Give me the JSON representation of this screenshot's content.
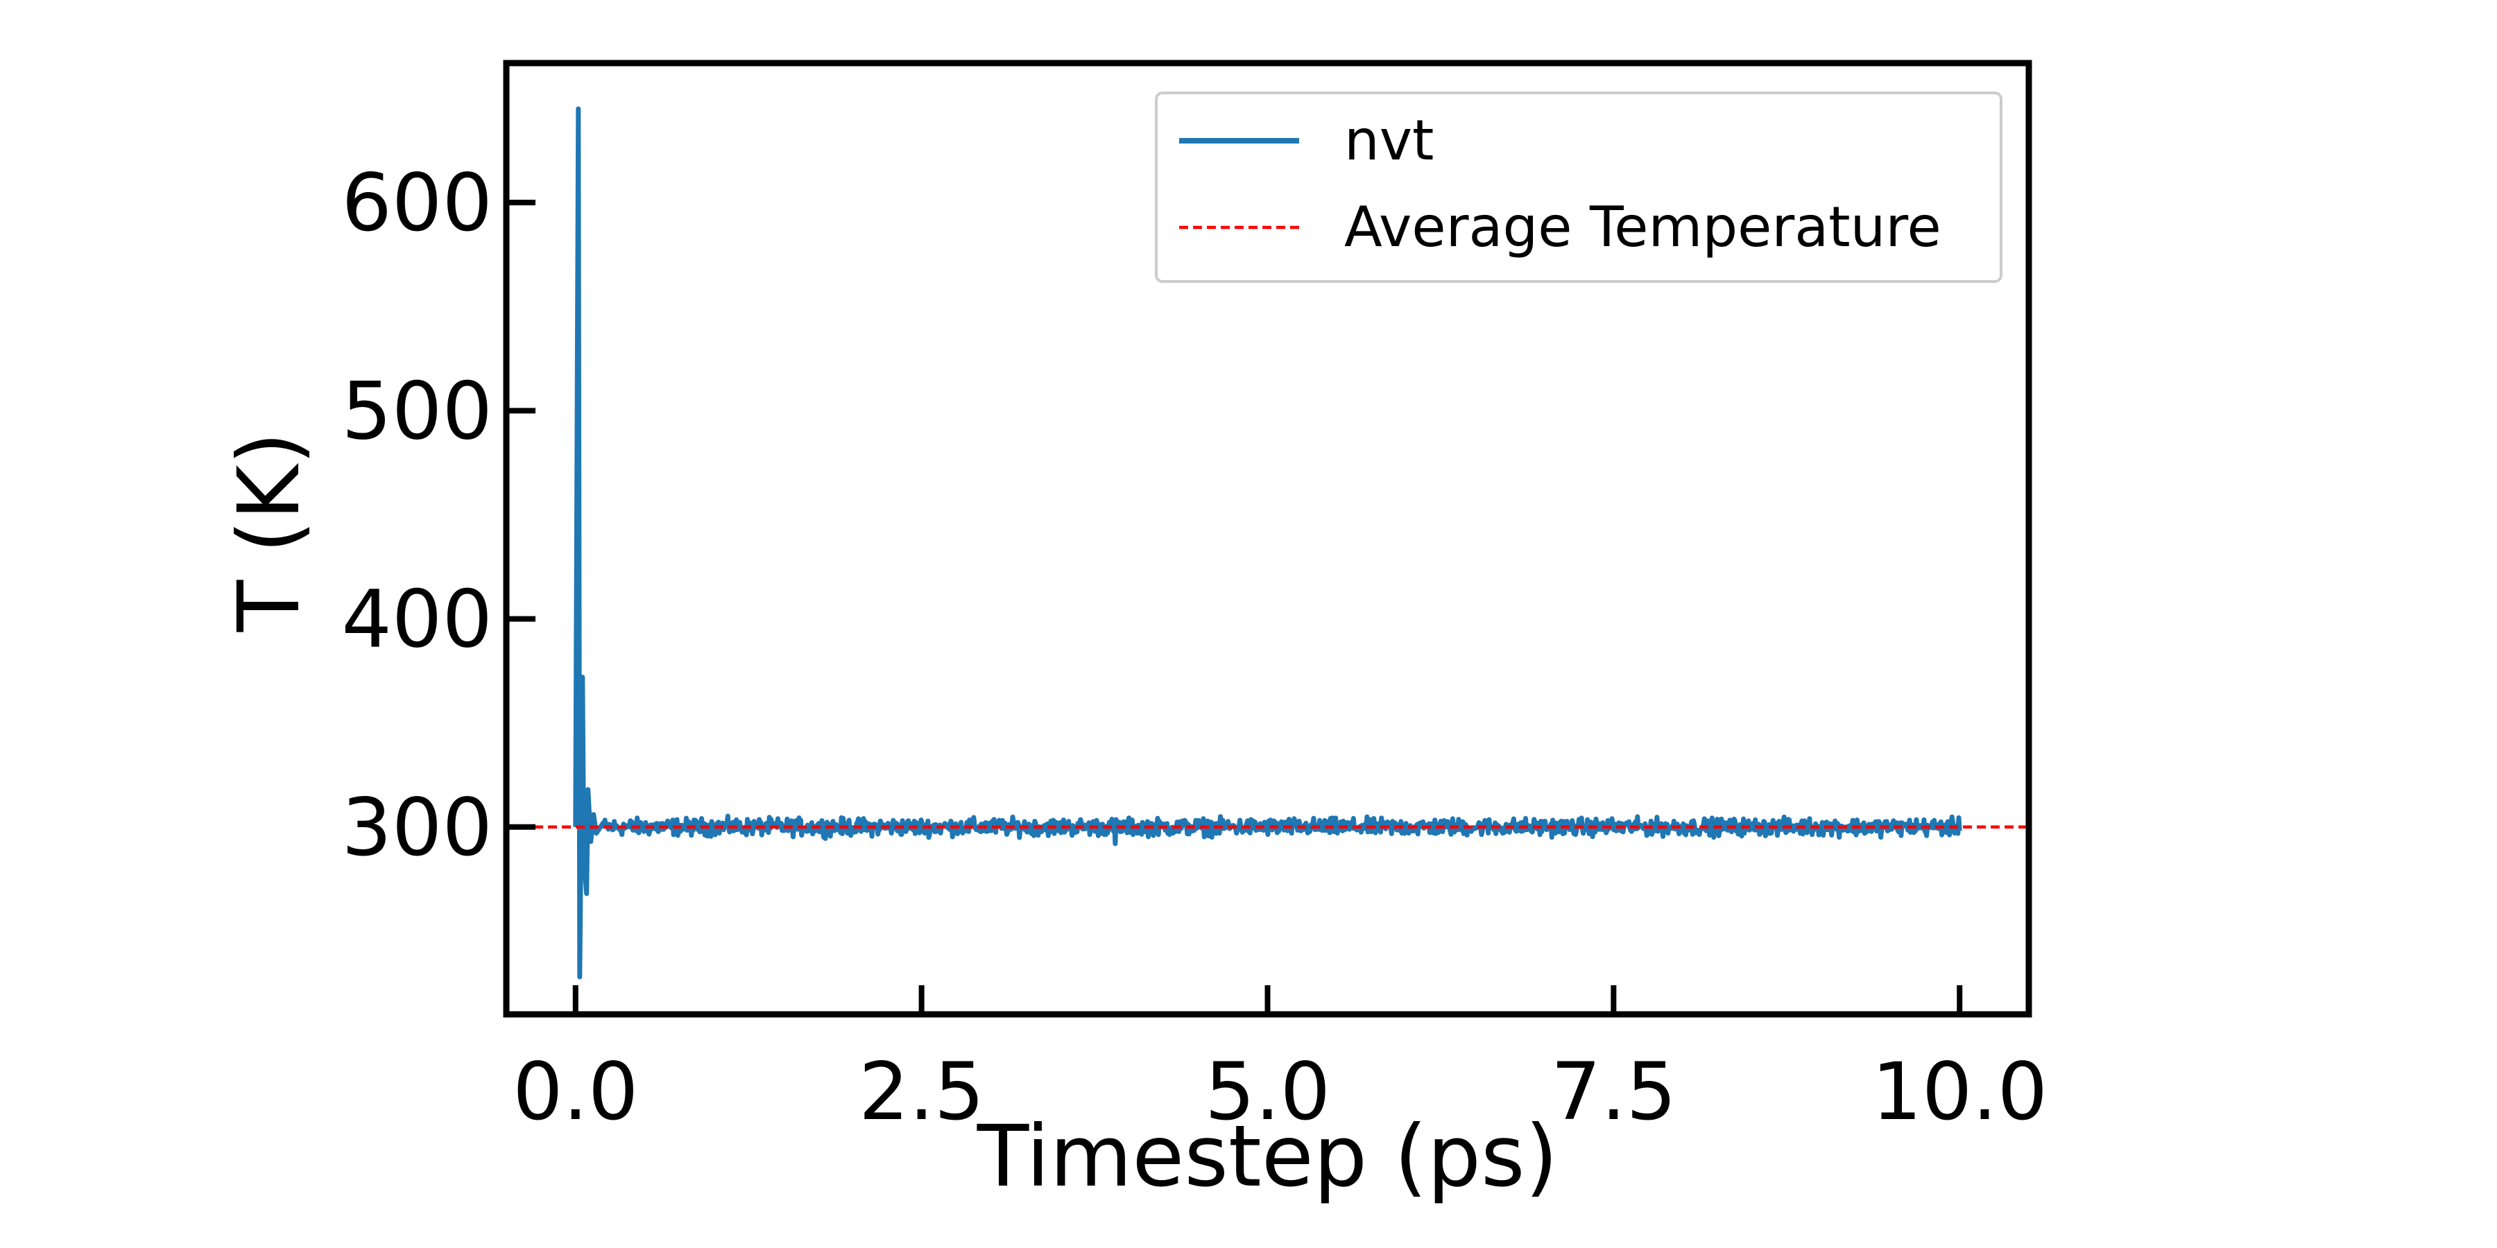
{
  "chart_data": {
    "type": "line",
    "xlabel": "Timestep (ps)",
    "ylabel": "T (K)",
    "xlim": [
      -0.5,
      10.5
    ],
    "ylim": [
      210,
      667
    ],
    "x_ticks": [
      0.0,
      2.5,
      5.0,
      7.5,
      10.0
    ],
    "x_tick_labels": [
      "0.0",
      "2.5",
      "5.0",
      "7.5",
      "10.0"
    ],
    "y_ticks": [
      300,
      400,
      500,
      600
    ],
    "y_tick_labels": [
      "300",
      "400",
      "500",
      "600"
    ],
    "grid": false,
    "legend_position": "top-right",
    "series": [
      {
        "name": "nvt",
        "color": "#1f77b4",
        "style": "solid",
        "x_range": [
          0.0,
          10.0
        ],
        "mean": 300,
        "noise_amplitude": 3,
        "initial_transient": [
          {
            "x": 0.0,
            "y": 300
          },
          {
            "x": 0.02,
            "y": 645
          },
          {
            "x": 0.03,
            "y": 228
          },
          {
            "x": 0.05,
            "y": 372
          },
          {
            "x": 0.06,
            "y": 285
          },
          {
            "x": 0.08,
            "y": 268
          },
          {
            "x": 0.09,
            "y": 318
          },
          {
            "x": 0.11,
            "y": 293
          },
          {
            "x": 0.13,
            "y": 306
          },
          {
            "x": 0.15,
            "y": 297
          },
          {
            "x": 0.2,
            "y": 302
          }
        ],
        "min_dip": {
          "x": 3.9,
          "y": 292
        }
      },
      {
        "name": "Average Temperature",
        "color": "#ff0000",
        "style": "dashed",
        "y": 300
      }
    ]
  }
}
